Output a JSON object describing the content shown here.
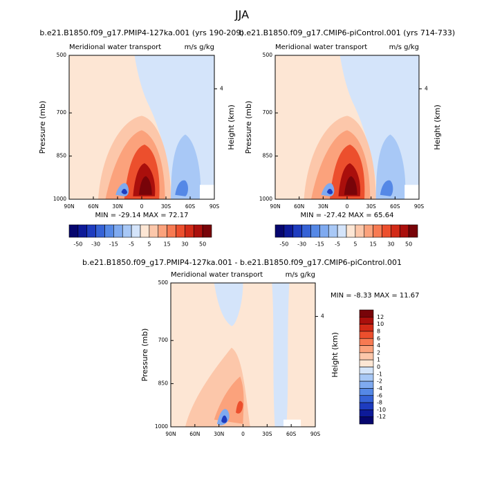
{
  "title": "JJA",
  "panels": [
    {
      "subtitle": "b.e21.B1850.f09_g17.PMIP4-127ka.001 (yrs 190-209)",
      "left_label": "Meridional water transport",
      "right_label": "m/s g/kg",
      "ylabel": "Pressure (mb)",
      "y2label": "Height (km)",
      "stats": "MIN = -29.14   MAX =  72.17",
      "xlim": [
        90,
        -90
      ],
      "xticks": [
        {
          "value": 90,
          "label": "90N"
        },
        {
          "value": 60,
          "label": "60N"
        },
        {
          "value": 30,
          "label": "30N"
        },
        0,
        {
          "value": -30,
          "label": "30S"
        },
        {
          "value": -60,
          "label": "60S"
        },
        {
          "value": -90,
          "label": "90S"
        }
      ],
      "ylim": [
        1000,
        500
      ],
      "yticks": [
        500,
        700,
        850,
        1000
      ],
      "y2ticks": [
        4
      ],
      "colorbar": {
        "orientation": "horizontal",
        "labels": [
          -50,
          -30,
          -15,
          -5,
          5,
          15,
          30,
          50
        ],
        "colors": [
          "#06066e",
          "#0d1a99",
          "#1e3cbf",
          "#3562d6",
          "#5588e6",
          "#7faaf0",
          "#a8c8f6",
          "#d4e4fa",
          "#fde6d4",
          "#fcc7aa",
          "#fba27c",
          "#f77a52",
          "#ec4f2d",
          "#d22a17",
          "#aa0f0c",
          "#780409"
        ]
      }
    },
    {
      "subtitle": "b.e21.B1850.f09_g17.CMIP6-piControl.001 (yrs 714-733)",
      "left_label": "Meridional water transport",
      "right_label": "m/s g/kg",
      "ylabel": "Pressure (mb)",
      "y2label": "Height (km)",
      "stats": "MIN = -27.42   MAX =  65.64",
      "xlim": [
        90,
        -90
      ],
      "xticks": [
        {
          "value": 90,
          "label": "90N"
        },
        {
          "value": 60,
          "label": "60N"
        },
        {
          "value": 30,
          "label": "30N"
        },
        0,
        {
          "value": -30,
          "label": "30S"
        },
        {
          "value": -60,
          "label": "60S"
        },
        {
          "value": -90,
          "label": "90S"
        }
      ],
      "ylim": [
        1000,
        500
      ],
      "yticks": [
        500,
        700,
        850,
        1000
      ],
      "y2ticks": [
        4
      ],
      "colorbar": {
        "orientation": "horizontal",
        "labels": [
          -50,
          -30,
          -15,
          -5,
          5,
          15,
          30,
          50
        ],
        "colors": [
          "#06066e",
          "#0d1a99",
          "#1e3cbf",
          "#3562d6",
          "#5588e6",
          "#7faaf0",
          "#a8c8f6",
          "#d4e4fa",
          "#fde6d4",
          "#fcc7aa",
          "#fba27c",
          "#f77a52",
          "#ec4f2d",
          "#d22a17",
          "#aa0f0c",
          "#780409"
        ]
      }
    },
    {
      "subtitle": "b.e21.B1850.f09_g17.PMIP4-127ka.001 - b.e21.B1850.f09_g17.CMIP6-piControl.001",
      "left_label": "Meridional water transport",
      "right_label": "m/s g/kg",
      "ylabel": "Pressure (mb)",
      "y2label": "Height (km)",
      "stats": "MIN =  -8.33  MAX =  11.67",
      "xlim": [
        90,
        -90
      ],
      "xticks": [
        {
          "value": 90,
          "label": "90N"
        },
        {
          "value": 60,
          "label": "60N"
        },
        {
          "value": 30,
          "label": "30N"
        },
        0,
        {
          "value": -30,
          "label": "30S"
        },
        {
          "value": -60,
          "label": "60S"
        },
        {
          "value": -90,
          "label": "90S"
        }
      ],
      "ylim": [
        1000,
        500
      ],
      "yticks": [
        500,
        700,
        850,
        1000
      ],
      "y2ticks": [
        4
      ],
      "colorbar": {
        "orientation": "vertical",
        "labels": [
          12,
          10,
          8,
          6,
          4,
          2,
          1,
          0,
          -1,
          -2,
          -4,
          -6,
          -8,
          -10,
          -12
        ],
        "colors": [
          "#780409",
          "#aa0f0c",
          "#d22a17",
          "#ec4f2d",
          "#f77a52",
          "#fba27c",
          "#fcc7aa",
          "#fde6d4",
          "#d4e4fa",
          "#a8c8f6",
          "#7faaf0",
          "#5588e6",
          "#3562d6",
          "#1e3cbf",
          "#0d1a99",
          "#06066e"
        ]
      }
    }
  ]
}
